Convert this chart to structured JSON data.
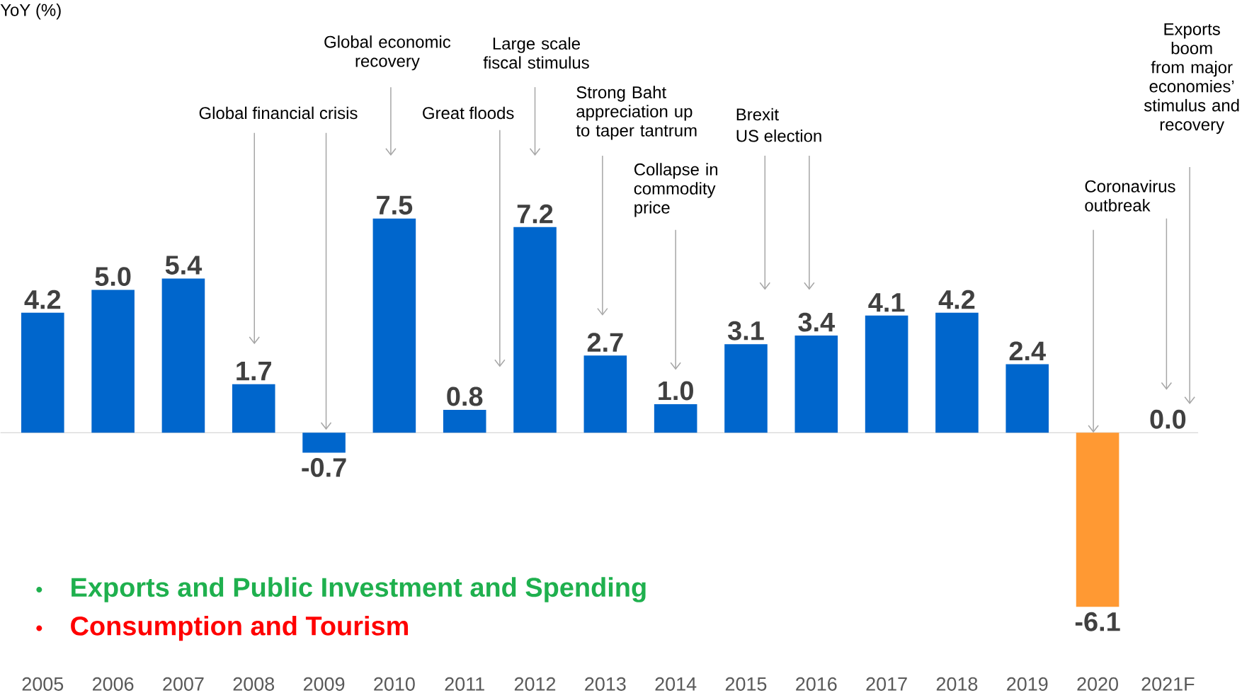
{
  "chart_data": {
    "type": "bar",
    "categories": [
      "2005",
      "2006",
      "2007",
      "2008",
      "2009",
      "2010",
      "2011",
      "2012",
      "2013",
      "2014",
      "2015",
      "2016",
      "2017",
      "2018",
      "2019",
      "2020",
      "2021F"
    ],
    "values": [
      4.2,
      5.0,
      5.4,
      1.7,
      -0.7,
      7.5,
      0.8,
      7.2,
      2.7,
      1.0,
      3.1,
      3.4,
      4.1,
      4.2,
      2.4,
      -6.1,
      0.0
    ],
    "colors": [
      "#0066cc",
      "#0066cc",
      "#0066cc",
      "#0066cc",
      "#0066cc",
      "#0066cc",
      "#0066cc",
      "#0066cc",
      "#0066cc",
      "#0066cc",
      "#0066cc",
      "#0066cc",
      "#0066cc",
      "#0066cc",
      "#0066cc",
      "#ff9933",
      "#0066cc"
    ],
    "value_labels": [
      "4.2",
      "5.0",
      "5.4",
      "1.7",
      "-0.7",
      "7.5",
      "0.8",
      "7.2",
      "2.7",
      "1.0",
      "3.1",
      "3.4",
      "4.1",
      "4.2",
      "2.4",
      "-6.1",
      "0.0"
    ],
    "annotations": [
      "YoY (%)",
      "Global financial crisis",
      "Global economic recovery",
      "Great floods",
      "Large scale fiscal stimulus",
      "Strong Baht appreciation up to taper tantrum",
      "Collapse in commodity price",
      "Brexit",
      "US election",
      "Coronavirus outbreak",
      "Exports boom from major economies’ stimulus and recovery",
      "Exports and Public Investment and Spending",
      "Consumption and Tourism"
    ]
  }
}
